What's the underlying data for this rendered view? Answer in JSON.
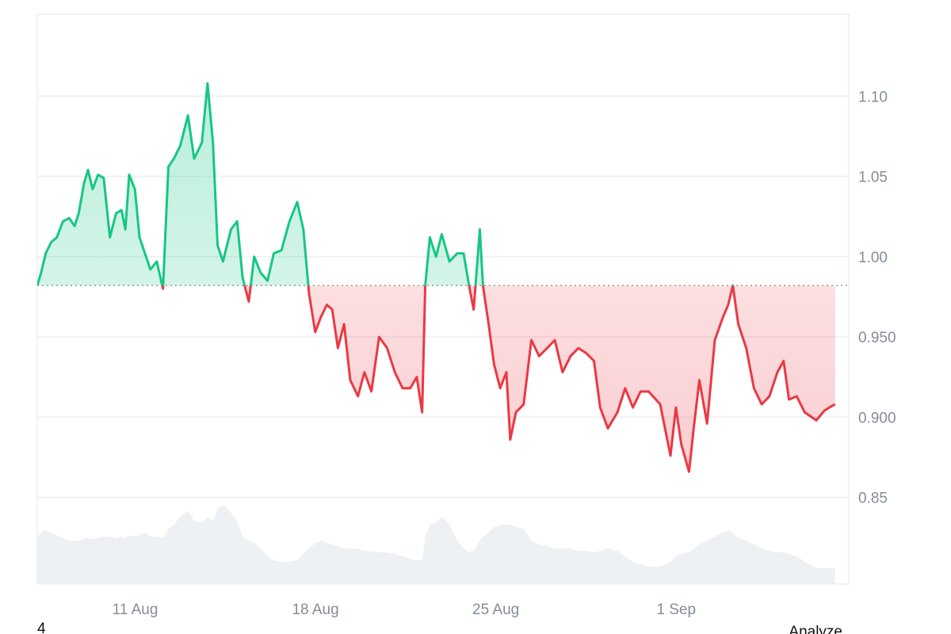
{
  "chart_data": {
    "type": "line",
    "x": [
      7.2,
      7.35,
      7.53,
      7.74,
      7.96,
      8.2,
      8.44,
      8.65,
      8.81,
      9.02,
      9.17,
      9.35,
      9.56,
      9.78,
      10.02,
      10.26,
      10.47,
      10.62,
      10.77,
      10.99,
      11.17,
      11.38,
      11.59,
      11.84,
      12.08,
      12.29,
      12.5,
      12.75,
      13.05,
      13.29,
      13.59,
      13.81,
      14.02,
      14.2,
      14.41,
      14.72,
      14.96,
      15.17,
      15.41,
      15.62,
      15.87,
      16.14,
      16.38,
      16.68,
      16.99,
      17.29,
      17.53,
      17.75,
      17.99,
      18.2,
      18.44,
      18.65,
      18.87,
      19.11,
      19.35,
      19.65,
      19.9,
      20.17,
      20.47,
      20.78,
      21.08,
      21.38,
      21.68,
      21.93,
      22.14,
      22.26,
      22.44,
      22.68,
      22.9,
      23.2,
      23.5,
      23.75,
      23.96,
      24.14,
      24.38,
      24.5,
      24.72,
      24.93,
      25.17,
      25.41,
      25.56,
      25.78,
      26.08,
      26.38,
      26.68,
      26.99,
      27.29,
      27.59,
      27.9,
      28.2,
      28.5,
      28.81,
      29.05,
      29.35,
      29.72,
      30.02,
      30.32,
      30.62,
      30.93,
      31.38,
      31.78,
      31.99,
      32.2,
      32.5,
      32.68,
      32.9,
      33.2,
      33.5,
      33.81,
      34.02,
      34.2,
      34.41,
      34.72,
      35.02,
      35.32,
      35.62,
      35.93,
      36.17,
      36.38,
      36.68,
      36.99,
      37.44,
      37.75,
      38.05,
      38.17
    ],
    "values": [
      0.982,
      0.99,
      1.002,
      1.009,
      1.012,
      1.022,
      1.024,
      1.019,
      1.027,
      1.046,
      1.054,
      1.042,
      1.051,
      1.049,
      1.012,
      1.027,
      1.029,
      1.017,
      1.051,
      1.042,
      1.012,
      1.002,
      0.992,
      0.997,
      0.98,
      1.056,
      1.061,
      1.069,
      1.088,
      1.061,
      1.071,
      1.108,
      1.071,
      1.007,
      0.997,
      1.017,
      1.022,
      0.987,
      0.972,
      1.0,
      0.99,
      0.985,
      1.002,
      1.004,
      1.022,
      1.034,
      1.017,
      0.977,
      0.953,
      0.962,
      0.97,
      0.967,
      0.943,
      0.958,
      0.923,
      0.913,
      0.928,
      0.916,
      0.95,
      0.943,
      0.928,
      0.918,
      0.918,
      0.925,
      0.903,
      0.982,
      1.012,
      1.0,
      1.014,
      0.997,
      1.002,
      1.002,
      0.982,
      0.967,
      1.017,
      0.982,
      0.958,
      0.933,
      0.918,
      0.928,
      0.886,
      0.903,
      0.908,
      0.948,
      0.938,
      0.943,
      0.948,
      0.928,
      0.938,
      0.943,
      0.94,
      0.935,
      0.906,
      0.893,
      0.903,
      0.918,
      0.906,
      0.916,
      0.916,
      0.908,
      0.876,
      0.906,
      0.883,
      0.866,
      0.893,
      0.923,
      0.896,
      0.948,
      0.962,
      0.97,
      0.982,
      0.958,
      0.943,
      0.918,
      0.908,
      0.913,
      0.928,
      0.935,
      0.911,
      0.913,
      0.903,
      0.898,
      0.904,
      0.907,
      0.908
    ],
    "volume": {
      "axis": "y2",
      "color": "#eef1f4",
      "values": [
        60,
        65,
        68,
        65,
        62,
        58,
        55,
        55,
        55,
        58,
        58,
        57,
        58,
        60,
        60,
        58,
        60,
        58,
        62,
        60,
        62,
        65,
        60,
        60,
        58,
        70,
        75,
        85,
        92,
        80,
        78,
        85,
        80,
        95,
        100,
        90,
        80,
        60,
        55,
        52,
        45,
        35,
        30,
        28,
        28,
        30,
        38,
        45,
        52,
        55,
        52,
        50,
        48,
        45,
        45,
        45,
        42,
        42,
        40,
        40,
        38,
        35,
        32,
        30,
        30,
        60,
        75,
        78,
        85,
        75,
        55,
        45,
        40,
        42,
        55,
        60,
        65,
        72,
        75,
        75,
        75,
        72,
        70,
        55,
        50,
        48,
        45,
        45,
        45,
        42,
        42,
        40,
        42,
        45,
        42,
        35,
        28,
        25,
        22,
        22,
        28,
        35,
        38,
        40,
        45,
        50,
        55,
        60,
        65,
        68,
        65,
        58,
        55,
        50,
        45,
        42,
        40,
        40,
        38,
        35,
        28,
        20,
        20,
        20,
        20
      ]
    },
    "baseline": 0.982,
    "color_up": "#16c784",
    "color_down": "#ea3943",
    "xlim": [
      7.2,
      38.7
    ],
    "xticks": [
      {
        "value": 11,
        "label": "11 Aug"
      },
      {
        "value": 18,
        "label": "18 Aug"
      },
      {
        "value": 25,
        "label": "25 Aug"
      },
      {
        "value": 32,
        "label": "1 Sep"
      }
    ],
    "ylim": [
      0.796,
      1.151
    ],
    "yticks": [
      {
        "value": 0.85,
        "label": "0.85"
      },
      {
        "value": 0.9,
        "label": "0.900"
      },
      {
        "value": 0.95,
        "label": "0.950"
      },
      {
        "value": 1.0,
        "label": "1.00"
      },
      {
        "value": 1.05,
        "label": "1.05"
      },
      {
        "value": 1.1,
        "label": "1.10"
      }
    ],
    "y2lim": [
      0,
      720
    ],
    "grid": true
  },
  "footer": {
    "left": "4",
    "right": "Analyze"
  }
}
